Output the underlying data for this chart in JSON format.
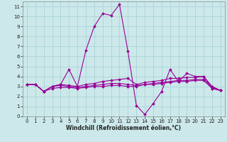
{
  "title": "",
  "xlabel": "Windchill (Refroidissement éolien,°C)",
  "bg_color": "#cce8ea",
  "grid_color": "#aad4d6",
  "line_color": "#990099",
  "xlim": [
    -0.5,
    23.5
  ],
  "ylim": [
    0,
    11.5
  ],
  "xticks": [
    0,
    1,
    2,
    3,
    4,
    5,
    6,
    7,
    8,
    9,
    10,
    11,
    12,
    13,
    14,
    15,
    16,
    17,
    18,
    19,
    20,
    21,
    22,
    23
  ],
  "yticks": [
    0,
    1,
    2,
    3,
    4,
    5,
    6,
    7,
    8,
    9,
    10,
    11
  ],
  "series": [
    [
      3.2,
      3.2,
      2.5,
      3.0,
      3.2,
      4.7,
      3.0,
      6.6,
      9.0,
      10.3,
      10.1,
      11.2,
      6.5,
      1.1,
      0.2,
      1.3,
      2.5,
      4.7,
      3.5,
      4.3,
      4.0,
      4.0,
      2.8,
      2.6
    ],
    [
      3.2,
      3.2,
      2.5,
      3.0,
      3.2,
      3.1,
      3.0,
      3.2,
      3.3,
      3.5,
      3.6,
      3.7,
      3.8,
      3.2,
      3.4,
      3.5,
      3.6,
      3.8,
      3.8,
      3.9,
      3.9,
      4.0,
      3.0,
      2.6
    ],
    [
      3.2,
      3.2,
      2.5,
      3.0,
      3.1,
      3.0,
      2.9,
      3.0,
      3.1,
      3.2,
      3.3,
      3.3,
      3.2,
      3.1,
      3.2,
      3.3,
      3.4,
      3.5,
      3.6,
      3.6,
      3.7,
      3.7,
      2.9,
      2.6
    ],
    [
      3.2,
      3.2,
      2.5,
      2.8,
      2.9,
      2.9,
      2.8,
      2.9,
      3.0,
      3.0,
      3.1,
      3.1,
      3.0,
      3.0,
      3.2,
      3.2,
      3.3,
      3.4,
      3.5,
      3.5,
      3.6,
      3.6,
      2.8,
      2.6
    ]
  ],
  "tick_fontsize": 5.0,
  "xlabel_fontsize": 5.5,
  "marker_size": 2.0,
  "linewidth": 0.8
}
